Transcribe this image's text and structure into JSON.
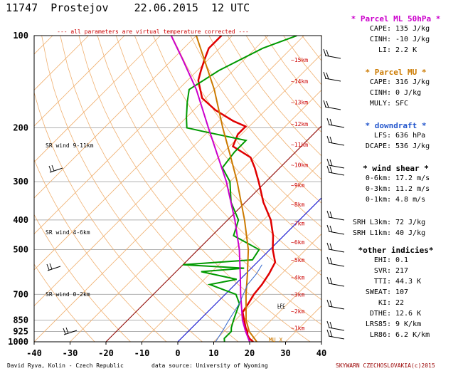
{
  "header": {
    "station": "11747",
    "name": "Prostejov",
    "date": "22.06.2015",
    "time": "12 UTC"
  },
  "note": "--- all parameters are virtual temperature corrected ---",
  "footer": {
    "left": "David Ryva, Kolin - Czech Republic",
    "center": "data source: University of Wyoming",
    "right": "SKYWARN CZECHOSLOVAKIA(c)2015"
  },
  "colors": {
    "temperature": "#e00000",
    "dewpoint": "#009900",
    "parcel_ml": "#cc00cc",
    "parcel_mu": "#cc7a00",
    "downdraft": "#3366cc",
    "isotherm_0": "#0000cc",
    "dry_adiabat": "#f0b070",
    "mixing_ratio": "#8b0000"
  },
  "chart_data": {
    "type": "line",
    "title": "11747 Prostejov 22.06.2015 12 UTC",
    "x_axis": {
      "ticks": [
        -40,
        -30,
        -20,
        -10,
        0,
        10,
        20,
        30,
        40
      ],
      "range": [
        -40,
        40
      ]
    },
    "y_axis": {
      "scale": "log",
      "ticks": [
        100,
        200,
        300,
        400,
        500,
        700,
        850,
        925,
        1000
      ]
    },
    "series": [
      {
        "name": "temperature",
        "points": [
          [
            1000,
            21
          ],
          [
            975,
            19
          ],
          [
            950,
            17.5
          ],
          [
            925,
            16.5
          ],
          [
            900,
            15
          ],
          [
            850,
            12.5
          ],
          [
            800,
            9.8
          ],
          [
            750,
            9
          ],
          [
            700,
            8
          ],
          [
            650,
            7.5
          ],
          [
            600,
            6.5
          ],
          [
            550,
            5
          ],
          [
            500,
            0.8
          ],
          [
            450,
            -3
          ],
          [
            400,
            -8
          ],
          [
            350,
            -15
          ],
          [
            300,
            -22
          ],
          [
            270,
            -27
          ],
          [
            250,
            -31
          ],
          [
            230,
            -39
          ],
          [
            210,
            -41
          ],
          [
            198,
            -41
          ],
          [
            190,
            -46
          ],
          [
            175,
            -54
          ],
          [
            160,
            -61
          ],
          [
            140,
            -67
          ],
          [
            130,
            -69
          ],
          [
            120,
            -71
          ],
          [
            110,
            -73
          ],
          [
            105,
            -73
          ],
          [
            100,
            -73
          ]
        ]
      },
      {
        "name": "dewpoint",
        "points": [
          [
            1000,
            13
          ],
          [
            975,
            12
          ],
          [
            950,
            12
          ],
          [
            925,
            12
          ],
          [
            900,
            11
          ],
          [
            850,
            9.5
          ],
          [
            750,
            6.5
          ],
          [
            700,
            3
          ],
          [
            650,
            -7
          ],
          [
            625,
            -1
          ],
          [
            590,
            -13
          ],
          [
            575,
            -2
          ],
          [
            560,
            -20
          ],
          [
            540,
            -2
          ],
          [
            500,
            -3
          ],
          [
            450,
            -14
          ],
          [
            400,
            -17
          ],
          [
            350,
            -24
          ],
          [
            300,
            -30
          ],
          [
            270,
            -36
          ],
          [
            240,
            -37
          ],
          [
            220,
            -37
          ],
          [
            205,
            -52
          ],
          [
            200,
            -57
          ],
          [
            185,
            -60
          ],
          [
            165,
            -64
          ],
          [
            150,
            -67
          ],
          [
            130,
            -64
          ],
          [
            110,
            -58
          ],
          [
            100,
            -52
          ]
        ]
      },
      {
        "name": "parcel_ml",
        "points": [
          [
            1000,
            20
          ],
          [
            925,
            16
          ],
          [
            850,
            12
          ],
          [
            700,
            4.3
          ],
          [
            600,
            -1.5
          ],
          [
            500,
            -8.5
          ],
          [
            400,
            -18
          ],
          [
            300,
            -31
          ],
          [
            250,
            -40
          ],
          [
            200,
            -51
          ],
          [
            150,
            -65
          ],
          [
            120,
            -77
          ],
          [
            100,
            -87
          ]
        ]
      },
      {
        "name": "parcel_mu",
        "points": [
          [
            1000,
            22
          ],
          [
            925,
            17
          ],
          [
            850,
            13
          ],
          [
            700,
            5.8
          ],
          [
            600,
            0.5
          ],
          [
            500,
            -6
          ],
          [
            400,
            -15.3
          ],
          [
            300,
            -28
          ],
          [
            250,
            -36.5
          ],
          [
            200,
            -47
          ],
          [
            150,
            -60
          ],
          [
            120,
            -71
          ],
          [
            100,
            -80
          ]
        ]
      },
      {
        "name": "downdraft",
        "points": [
          [
            1000,
            10.5
          ],
          [
            925,
            9.5
          ],
          [
            850,
            8.2
          ],
          [
            750,
            6.5
          ],
          [
            650,
            3.5
          ],
          [
            600,
            3
          ],
          [
            560,
            2
          ]
        ]
      }
    ],
    "height_labels": [
      {
        "label": "~1km",
        "p": 900
      },
      {
        "label": "~2km",
        "p": 795
      },
      {
        "label": "~3km",
        "p": 700
      },
      {
        "label": "~4km",
        "p": 616
      },
      {
        "label": "~5km",
        "p": 540
      },
      {
        "label": "~6km",
        "p": 472
      },
      {
        "label": "~7km",
        "p": 410
      },
      {
        "label": "~8km",
        "p": 356
      },
      {
        "label": "~9km",
        "p": 308
      },
      {
        "label": "~10km",
        "p": 264
      },
      {
        "label": "~11km",
        "p": 227
      },
      {
        "label": "~12km",
        "p": 194
      },
      {
        "label": "~13km",
        "p": 165
      },
      {
        "label": "~14km",
        "p": 141
      },
      {
        "label": "~15km",
        "p": 120
      }
    ],
    "annotations": [
      {
        "text": "SR wind 9-11km",
        "p": 232
      },
      {
        "text": "SR wind 4-6km",
        "p": 445
      },
      {
        "text": "SR wind 0-2km",
        "p": 710
      },
      {
        "text": "MU X",
        "p": 1000
      },
      {
        "text": "LCL",
        "p": 780
      },
      {
        "text": "LFC",
        "p": 770
      }
    ]
  },
  "panels": [
    {
      "title": "* Parcel ML 50hPa *",
      "color": "#cc00cc",
      "rows": [
        {
          "k": "CAPE:",
          "v": "135 J/kg"
        },
        {
          "k": "CINH:",
          "v": "-10 J/kg"
        },
        {
          "k": "LI:",
          "v": "2.2 K"
        }
      ]
    },
    {
      "title": "* Parcel MU *",
      "color": "#cc7a00",
      "rows": [
        {
          "k": "CAPE:",
          "v": "316 J/kg"
        },
        {
          "k": "CINH:",
          "v": "0 J/kg"
        },
        {
          "k": "MULY:",
          "v": "SFC"
        }
      ]
    },
    {
      "title": "* downdraft *",
      "color": "#2255cc",
      "rows": [
        {
          "k": "LFS:",
          "v": "636 hPa"
        },
        {
          "k": "DCAPE:",
          "v": "536 J/kg"
        }
      ]
    },
    {
      "title": "* wind shear *",
      "color": "#000000",
      "rows": [
        {
          "k": "0-6km:",
          "v": "17.2 m/s"
        },
        {
          "k": "0-3km:",
          "v": "11.2 m/s"
        },
        {
          "k": "0-1km:",
          "v": "4.8 m/s"
        }
      ]
    },
    {
      "title": "",
      "color": "#000000",
      "rows": [
        {
          "k": "SRH L3km:",
          "v": "72 J/kg"
        },
        {
          "k": "SRH L1km:",
          "v": "40 J/kg"
        }
      ]
    },
    {
      "title": "*other indicies*",
      "color": "#000000",
      "rows": [
        {
          "k": "EHI:",
          "v": "0.1"
        },
        {
          "k": "SVR:",
          "v": "217"
        },
        {
          "k": "TTI:",
          "v": "44.3 K"
        },
        {
          "k": "SWEAT:",
          "v": "107"
        },
        {
          "k": "KI:",
          "v": "22"
        },
        {
          "k": "DTHE:",
          "v": "12.6 K"
        },
        {
          "k": "LRS85:",
          "v": "9 K/km"
        },
        {
          "k": "LR86:",
          "v": "6.2 K/km"
        }
      ]
    }
  ]
}
